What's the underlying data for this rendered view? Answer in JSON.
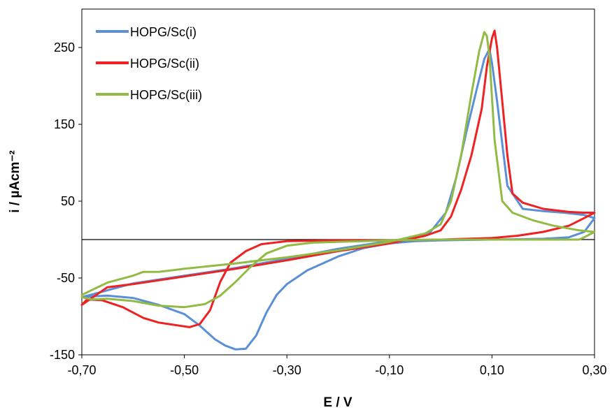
{
  "chart_data": {
    "type": "line",
    "title": "",
    "xlabel": "E / V",
    "ylabel": "i / µAcm⁻²",
    "xlim": [
      -0.7,
      0.3
    ],
    "ylim": [
      -150,
      300
    ],
    "x_ticks": [
      -0.7,
      -0.5,
      -0.3,
      -0.1,
      0.1,
      0.3
    ],
    "x_tick_labels": [
      "-0,70",
      "-0,50",
      "-0,30",
      "-0,10",
      "0,10",
      "0,30"
    ],
    "y_ticks": [
      -150,
      -50,
      50,
      150,
      250
    ],
    "y_tick_labels": [
      "-150",
      "-50",
      "50",
      "150",
      "250"
    ],
    "grid": false,
    "legend_position": "top-left",
    "series": [
      {
        "name": "HOPG/Sc(i)",
        "color": "#5B8FD6",
        "points": [
          [
            -0.7,
            -75
          ],
          [
            -0.68,
            -74
          ],
          [
            -0.65,
            -73
          ],
          [
            -0.6,
            -76
          ],
          [
            -0.55,
            -85
          ],
          [
            -0.5,
            -97
          ],
          [
            -0.47,
            -112
          ],
          [
            -0.44,
            -130
          ],
          [
            -0.42,
            -138
          ],
          [
            -0.4,
            -143
          ],
          [
            -0.38,
            -142
          ],
          [
            -0.36,
            -125
          ],
          [
            -0.34,
            -95
          ],
          [
            -0.32,
            -72
          ],
          [
            -0.3,
            -58
          ],
          [
            -0.26,
            -40
          ],
          [
            -0.2,
            -22
          ],
          [
            -0.15,
            -11
          ],
          [
            -0.1,
            -5
          ],
          [
            -0.05,
            -2
          ],
          [
            0.0,
            -1
          ],
          [
            0.1,
            0
          ],
          [
            0.2,
            1
          ],
          [
            0.25,
            3
          ],
          [
            0.28,
            10
          ],
          [
            0.3,
            28
          ],
          [
            0.28,
            32
          ],
          [
            0.24,
            35
          ],
          [
            0.2,
            37
          ],
          [
            0.16,
            40
          ],
          [
            0.13,
            70
          ],
          [
            0.11,
            180
          ],
          [
            0.1,
            230
          ],
          [
            0.095,
            248
          ],
          [
            0.085,
            235
          ],
          [
            0.07,
            195
          ],
          [
            0.05,
            140
          ],
          [
            0.03,
            80
          ],
          [
            0.01,
            35
          ],
          [
            -0.02,
            10
          ],
          [
            -0.05,
            3
          ],
          [
            -0.1,
            -2
          ],
          [
            -0.2,
            -12
          ],
          [
            -0.3,
            -25
          ],
          [
            -0.4,
            -37
          ],
          [
            -0.5,
            -47
          ],
          [
            -0.6,
            -57
          ],
          [
            -0.7,
            -75
          ]
        ]
      },
      {
        "name": "HOPG/Sc(ii)",
        "color": "#EE2222",
        "points": [
          [
            -0.7,
            -85
          ],
          [
            -0.69,
            -78
          ],
          [
            -0.66,
            -79
          ],
          [
            -0.62,
            -88
          ],
          [
            -0.58,
            -102
          ],
          [
            -0.55,
            -108
          ],
          [
            -0.52,
            -111
          ],
          [
            -0.49,
            -114
          ],
          [
            -0.47,
            -110
          ],
          [
            -0.45,
            -92
          ],
          [
            -0.43,
            -55
          ],
          [
            -0.41,
            -30
          ],
          [
            -0.38,
            -15
          ],
          [
            -0.35,
            -6
          ],
          [
            -0.3,
            -2
          ],
          [
            -0.2,
            -1
          ],
          [
            -0.1,
            -1
          ],
          [
            0.0,
            0
          ],
          [
            0.1,
            2
          ],
          [
            0.15,
            5
          ],
          [
            0.2,
            10
          ],
          [
            0.25,
            18
          ],
          [
            0.28,
            28
          ],
          [
            0.3,
            35
          ],
          [
            0.28,
            35
          ],
          [
            0.25,
            36
          ],
          [
            0.2,
            40
          ],
          [
            0.16,
            48
          ],
          [
            0.14,
            60
          ],
          [
            0.13,
            110
          ],
          [
            0.12,
            180
          ],
          [
            0.11,
            250
          ],
          [
            0.105,
            272
          ],
          [
            0.1,
            262
          ],
          [
            0.09,
            225
          ],
          [
            0.08,
            170
          ],
          [
            0.06,
            110
          ],
          [
            0.04,
            65
          ],
          [
            0.02,
            30
          ],
          [
            0.0,
            12
          ],
          [
            -0.03,
            5
          ],
          [
            -0.1,
            -5
          ],
          [
            -0.2,
            -15
          ],
          [
            -0.3,
            -27
          ],
          [
            -0.4,
            -38
          ],
          [
            -0.5,
            -48
          ],
          [
            -0.6,
            -58
          ],
          [
            -0.65,
            -62
          ],
          [
            -0.7,
            -85
          ]
        ]
      },
      {
        "name": "HOPG/Sc(iii)",
        "color": "#92BB45",
        "points": [
          [
            -0.7,
            -75
          ],
          [
            -0.68,
            -78
          ],
          [
            -0.65,
            -77
          ],
          [
            -0.6,
            -80
          ],
          [
            -0.55,
            -86
          ],
          [
            -0.5,
            -88
          ],
          [
            -0.46,
            -84
          ],
          [
            -0.43,
            -73
          ],
          [
            -0.4,
            -55
          ],
          [
            -0.37,
            -35
          ],
          [
            -0.34,
            -18
          ],
          [
            -0.3,
            -8
          ],
          [
            -0.25,
            -4
          ],
          [
            -0.2,
            -3
          ],
          [
            -0.1,
            -1
          ],
          [
            0.0,
            0
          ],
          [
            0.1,
            0
          ],
          [
            0.2,
            0
          ],
          [
            0.27,
            0
          ],
          [
            0.28,
            3
          ],
          [
            0.3,
            10
          ],
          [
            0.27,
            12
          ],
          [
            0.22,
            18
          ],
          [
            0.18,
            25
          ],
          [
            0.14,
            35
          ],
          [
            0.12,
            50
          ],
          [
            0.105,
            130
          ],
          [
            0.095,
            240
          ],
          [
            0.09,
            265
          ],
          [
            0.085,
            270
          ],
          [
            0.075,
            245
          ],
          [
            0.06,
            190
          ],
          [
            0.04,
            110
          ],
          [
            0.02,
            50
          ],
          [
            0.0,
            20
          ],
          [
            -0.03,
            8
          ],
          [
            -0.1,
            -3
          ],
          [
            -0.2,
            -14
          ],
          [
            -0.3,
            -23
          ],
          [
            -0.4,
            -31
          ],
          [
            -0.5,
            -38
          ],
          [
            -0.55,
            -42
          ],
          [
            -0.58,
            -42
          ],
          [
            -0.6,
            -47
          ],
          [
            -0.65,
            -56
          ],
          [
            -0.7,
            -72
          ]
        ]
      }
    ]
  }
}
